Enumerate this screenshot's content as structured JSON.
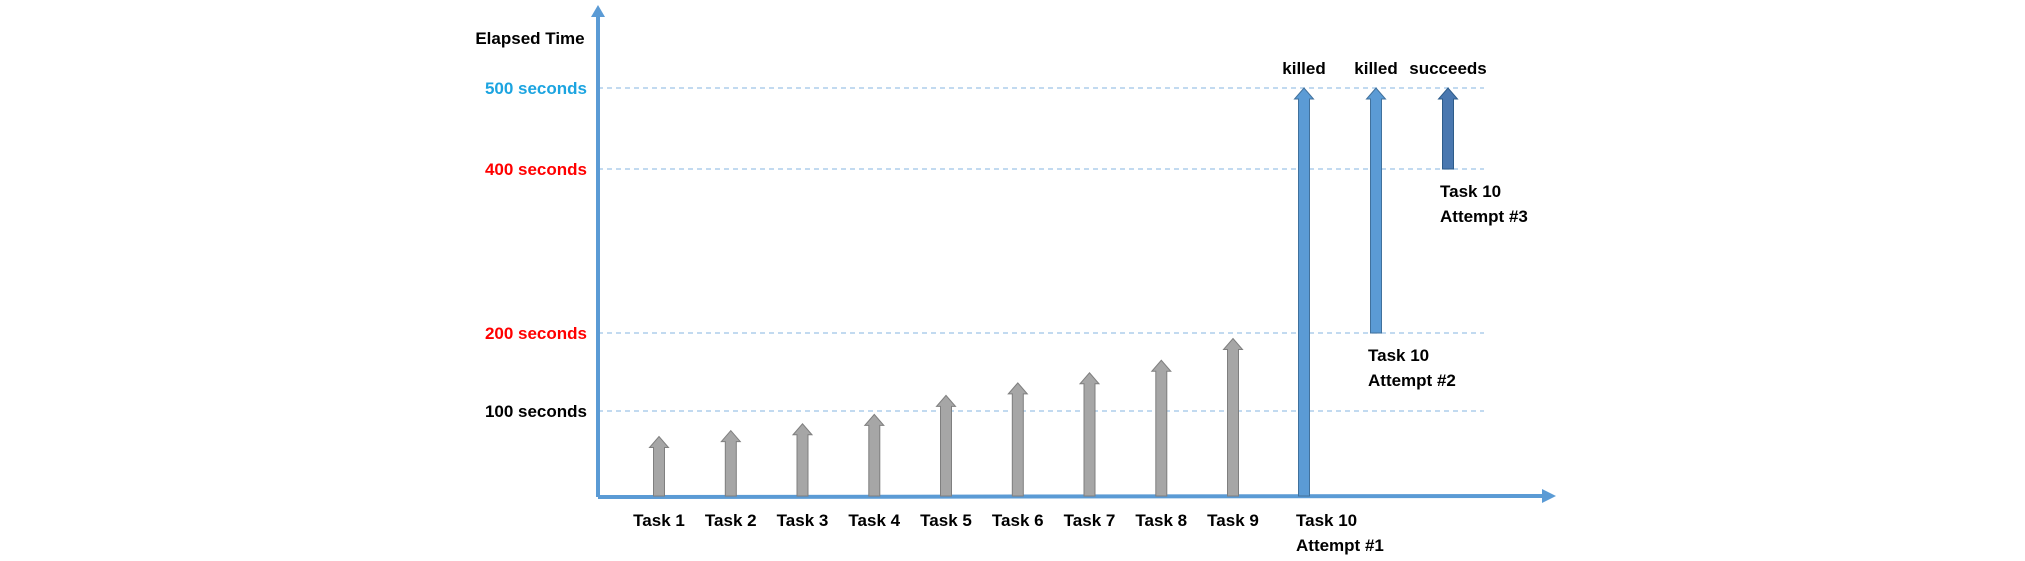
{
  "colors": {
    "axis": "#5B9BD5",
    "gridline": "#9DC3E6",
    "gray_arrow": "#A6A6A6",
    "gray_arrow_edge": "#7F7F7F",
    "blue_arrow": "#5B9BD5",
    "blue_arrow_edge": "#41719C",
    "blue_arrow_dark": "#4A78B0",
    "blue_arrow_dark_edge": "#2E5C8A",
    "label_black": "#000000",
    "label_blue": "#1CA4E0",
    "label_red": "#FF0000"
  },
  "y_axis_title": "Elapsed Time",
  "y_labels": [
    {
      "text": "500 seconds",
      "value": 500,
      "color": "label_blue"
    },
    {
      "text": "400 seconds",
      "value": 400,
      "color": "label_red"
    },
    {
      "text": "200 seconds",
      "value": 200,
      "color": "label_red"
    },
    {
      "text": "100 seconds",
      "value": 100,
      "color": "label_black"
    }
  ],
  "gridlines": [
    500,
    400,
    200,
    100
  ],
  "tasks": [
    {
      "label": "Task 1",
      "end": 70
    },
    {
      "label": "Task 2",
      "end": 77
    },
    {
      "label": "Task 3",
      "end": 85
    },
    {
      "label": "Task 4",
      "end": 96
    },
    {
      "label": "Task 5",
      "end": 120
    },
    {
      "label": "Task 6",
      "end": 136
    },
    {
      "label": "Task 7",
      "end": 149
    },
    {
      "label": "Task 8",
      "end": 165
    },
    {
      "label": "Task 9",
      "end": 193
    }
  ],
  "attempts": [
    {
      "label_lines": [
        "Task 10",
        "Attempt #1"
      ],
      "start": 0,
      "end": 500,
      "top_label": "killed",
      "style": "blue"
    },
    {
      "label_lines": [
        "Task 10",
        "Attempt #2"
      ],
      "start": 200,
      "end": 500,
      "top_label": "killed",
      "style": "blue"
    },
    {
      "label_lines": [
        "Task 10",
        "Attempt #3"
      ],
      "start": 400,
      "end": 500,
      "top_label": "succeeds",
      "style": "dark"
    }
  ]
}
